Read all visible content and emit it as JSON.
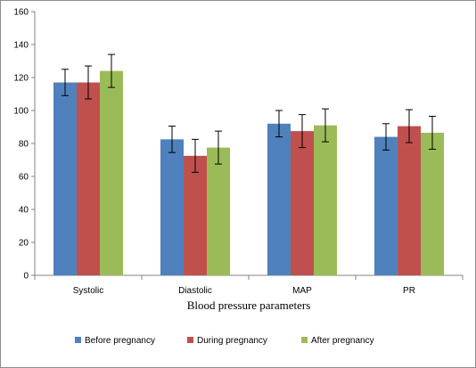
{
  "chart_data": {
    "type": "bar",
    "categories": [
      "Systolic",
      "Diastolic",
      "MAP",
      "PR"
    ],
    "series": [
      {
        "name": "Before pregnancy",
        "color": "#4F81BD",
        "values": [
          117,
          82.5,
          92,
          84
        ],
        "errors": [
          8,
          8,
          8,
          8
        ]
      },
      {
        "name": "During pregnancy",
        "color": "#C0504D",
        "values": [
          117,
          72.5,
          87.5,
          90.5
        ],
        "errors": [
          10,
          10,
          10,
          10
        ]
      },
      {
        "name": "After pregnancy",
        "color": "#9BBB59",
        "values": [
          124,
          77.5,
          91,
          86.5
        ],
        "errors": [
          10,
          10,
          10,
          10
        ]
      }
    ],
    "xlabel": "Blood pressure parameters",
    "ylabel": "",
    "title": "",
    "ylim": [
      0,
      160
    ],
    "yticks": [
      0,
      20,
      40,
      60,
      80,
      100,
      120,
      140,
      160
    ],
    "grid": false,
    "legend_position": "bottom"
  }
}
